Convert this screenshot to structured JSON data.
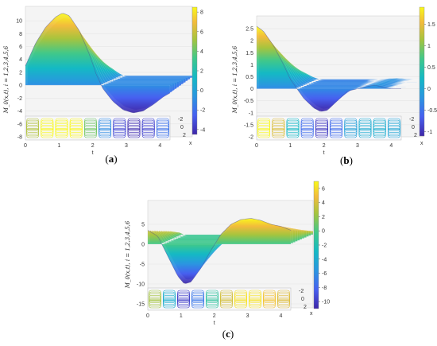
{
  "chart_data": [
    {
      "type": "surface",
      "panel_label": {
        "open": "(",
        "letter": "a",
        "close": ")"
      },
      "ylabel": "M_0(x,t), i = 1,2,3,4,5,6",
      "xlabel": "t",
      "depth_label": "x",
      "ticks": [
        "-8",
        "-6",
        "-4",
        "-2",
        "0",
        "2",
        "4",
        "6",
        "8",
        "10"
      ],
      "t_ticks": [
        "0",
        "1",
        "2",
        "3",
        "4"
      ],
      "x_ticks": [
        "-2",
        "0",
        "2"
      ],
      "colorbar": {
        "ticks": [
          "8",
          "6",
          "4",
          "2",
          "0",
          "-2",
          "-4"
        ],
        "range": [
          -4.5,
          8.5
        ]
      },
      "z_range": [
        -8,
        11
      ],
      "profile": [
        [
          0.0,
          3.0
        ],
        [
          0.3,
          6.5
        ],
        [
          0.6,
          9.0
        ],
        [
          0.9,
          10.6
        ],
        [
          1.1,
          11.2
        ],
        [
          1.3,
          10.8
        ],
        [
          1.6,
          8.5
        ],
        [
          1.9,
          4.8
        ],
        [
          2.1,
          1.8
        ],
        [
          2.3,
          -0.5
        ],
        [
          2.6,
          -2.5
        ],
        [
          2.9,
          -3.8
        ],
        [
          3.2,
          -4.3
        ],
        [
          3.5,
          -4.0
        ],
        [
          3.8,
          -3.0
        ],
        [
          4.1,
          -1.8
        ],
        [
          4.3,
          -1.2
        ]
      ]
    },
    {
      "type": "surface",
      "panel_label": {
        "open": "(",
        "letter": "b",
        "close": ")"
      },
      "ylabel": "M_0(x,t), i = 1,2,3,4,5,6",
      "xlabel": "t",
      "depth_label": "x",
      "ticks": [
        "-2",
        "-1.5",
        "-1",
        "-0.5",
        "0",
        "0.5",
        "1",
        "1.5",
        "2",
        "2.5"
      ],
      "t_ticks": [
        "0",
        "1",
        "2",
        "3",
        "4"
      ],
      "x_ticks": [
        "-2",
        "0",
        "2"
      ],
      "colorbar": {
        "ticks": [
          "1.5",
          "1",
          "0.5",
          "0",
          "-0.5",
          "-1"
        ],
        "range": [
          -1.1,
          1.9
        ]
      },
      "z_range": [
        -2,
        2.7
      ],
      "profile": [
        [
          0.0,
          2.6
        ],
        [
          0.2,
          2.4
        ],
        [
          0.5,
          1.8
        ],
        [
          0.8,
          1.0
        ],
        [
          1.0,
          0.4
        ],
        [
          1.2,
          0.0
        ],
        [
          1.4,
          -0.4
        ],
        [
          1.7,
          -0.8
        ],
        [
          1.9,
          -0.95
        ],
        [
          2.1,
          -0.9
        ],
        [
          2.4,
          -0.5
        ],
        [
          2.7,
          -0.1
        ],
        [
          3.0,
          0.0
        ],
        [
          3.3,
          0.1
        ],
        [
          3.5,
          0.15
        ],
        [
          3.8,
          0.05
        ],
        [
          4.0,
          0.0
        ],
        [
          4.3,
          0.0
        ]
      ]
    },
    {
      "type": "surface",
      "panel_label": {
        "open": "(",
        "letter": "c",
        "close": ")"
      },
      "ylabel": "M_0(x,t), i = 1,2,3,4,5,6",
      "xlabel": "t",
      "depth_label": "x",
      "ticks": [
        "-15",
        "-10",
        "-5",
        "0",
        "5"
      ],
      "t_ticks": [
        "0",
        "1",
        "2",
        "3",
        "4"
      ],
      "x_ticks": [
        "-2",
        "0",
        "2"
      ],
      "colorbar": {
        "ticks": [
          "6",
          "4",
          "2",
          "0",
          "-2",
          "-4",
          "-6",
          "-8",
          "-10"
        ],
        "range": [
          -11,
          7
        ]
      },
      "z_range": [
        -16,
        9
      ],
      "profile": [
        [
          0.0,
          3.5
        ],
        [
          0.3,
          2.0
        ],
        [
          0.6,
          -3.0
        ],
        [
          0.9,
          -8.0
        ],
        [
          1.1,
          -10.0
        ],
        [
          1.3,
          -9.5
        ],
        [
          1.6,
          -6.0
        ],
        [
          1.9,
          -1.5
        ],
        [
          2.2,
          2.5
        ],
        [
          2.5,
          5.0
        ],
        [
          2.8,
          6.2
        ],
        [
          3.1,
          6.5
        ],
        [
          3.4,
          6.0
        ],
        [
          3.7,
          5.0
        ],
        [
          4.0,
          4.5
        ],
        [
          4.3,
          3.5
        ]
      ]
    }
  ]
}
